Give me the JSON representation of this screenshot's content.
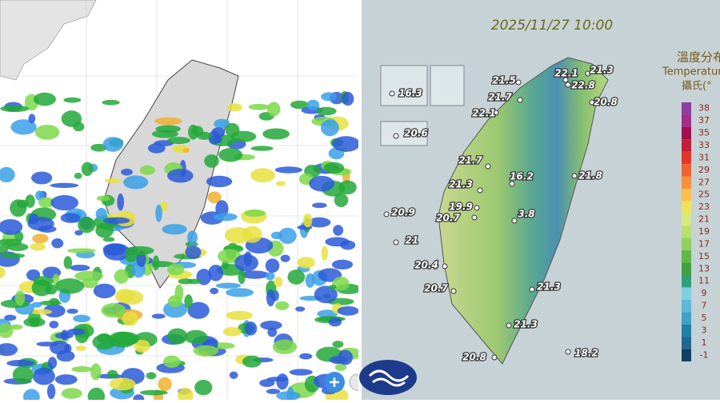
{
  "timestamp": "2025/11/27 10:00",
  "legend": {
    "title_zh": "溫度分布",
    "title_en": "Temperature",
    "unit": "攝氏(°",
    "ticks": [
      38,
      37,
      35,
      33,
      31,
      29,
      27,
      25,
      23,
      21,
      19,
      17,
      15,
      13,
      11,
      9,
      7,
      5,
      3,
      1,
      -1
    ]
  },
  "stations": [
    21.3,
    22.1,
    22.8,
    21.5,
    21.7,
    20.8,
    22.1,
    21.7,
    16.2,
    21.8,
    21.3,
    19.9,
    20.9,
    20.7,
    3.8,
    21.0,
    20.4,
    20.7,
    21.3,
    21.3,
    18.2,
    20.8,
    16.3,
    20.6
  ]
}
